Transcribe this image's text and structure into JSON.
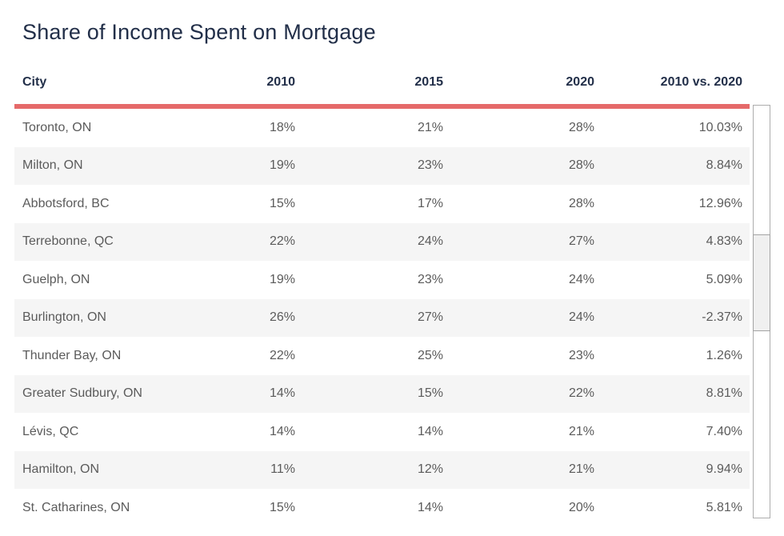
{
  "page": {
    "title": "Share of Income Spent on Mortgage"
  },
  "chart_data": {
    "type": "table",
    "title": "Share of Income Spent on Mortgage",
    "columns": [
      "City",
      "2010",
      "2015",
      "2020",
      "2010 vs. 2020"
    ],
    "rows": [
      [
        "Toronto, ON",
        "18%",
        "21%",
        "28%",
        "10.03%"
      ],
      [
        "Milton, ON",
        "19%",
        "23%",
        "28%",
        "8.84%"
      ],
      [
        "Abbotsford, BC",
        "15%",
        "17%",
        "28%",
        "12.96%"
      ],
      [
        "Terrebonne, QC",
        "22%",
        "24%",
        "27%",
        "4.83%"
      ],
      [
        "Guelph, ON",
        "19%",
        "23%",
        "24%",
        "5.09%"
      ],
      [
        "Burlington, ON",
        "26%",
        "27%",
        "24%",
        "-2.37%"
      ],
      [
        "Thunder Bay, ON",
        "22%",
        "25%",
        "23%",
        "1.26%"
      ],
      [
        "Greater Sudbury, ON",
        "14%",
        "15%",
        "22%",
        "8.81%"
      ],
      [
        "Lévis, QC",
        "14%",
        "14%",
        "21%",
        "7.40%"
      ],
      [
        "Hamilton, ON",
        "11%",
        "12%",
        "21%",
        "9.94%"
      ],
      [
        "St. Catharines, ON",
        "15%",
        "14%",
        "20%",
        "5.81%"
      ]
    ],
    "layout_hints": {
      "numeric_columns_right_aligned": true,
      "zebra_striping": "even rows shaded",
      "header_rule_color": "#e56a6a",
      "vertical_scrollbar_visible": true
    }
  },
  "scrollbar": {
    "orientation": "vertical"
  },
  "colors": {
    "accent": "#e56a6a",
    "heading": "#222f49",
    "body_text": "#5b5b5b",
    "row_stripe": "#f5f5f5"
  }
}
